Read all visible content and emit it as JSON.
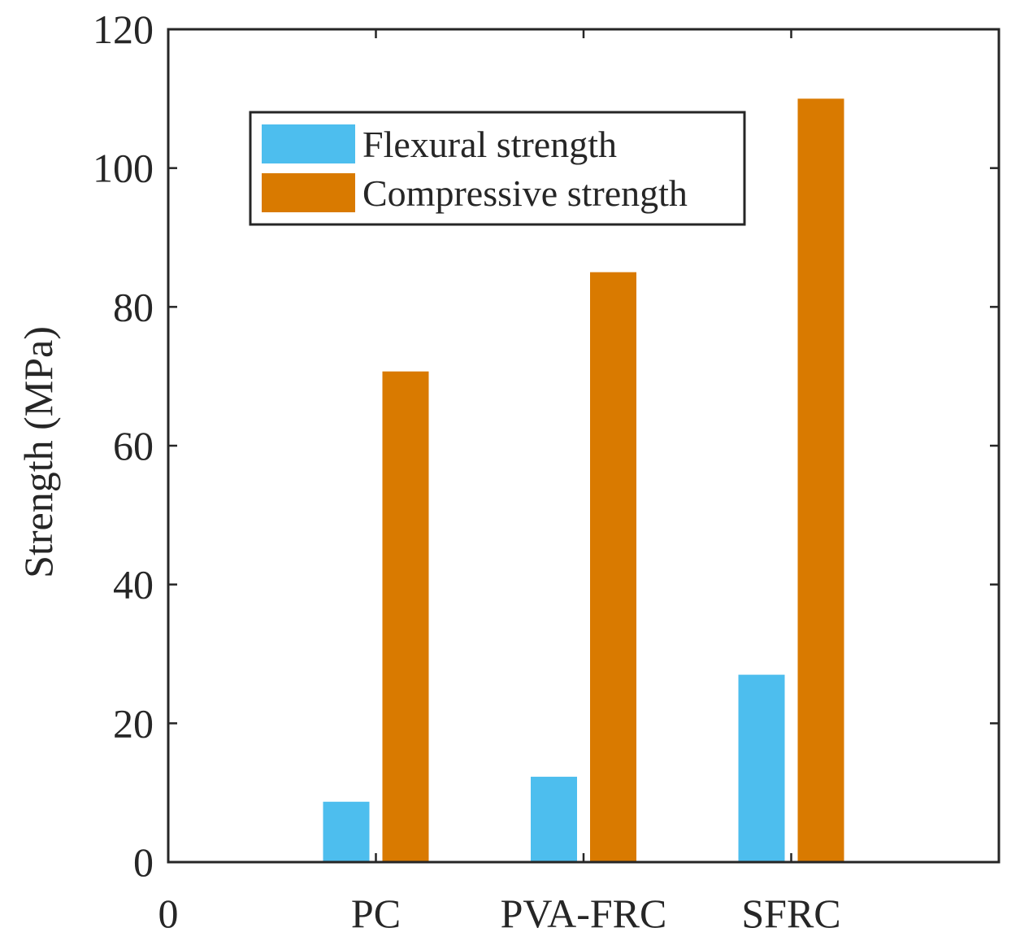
{
  "chart_data": {
    "type": "bar",
    "title": "",
    "xlabel": "",
    "ylabel": "Strength (MPa)",
    "ylim": [
      0,
      120
    ],
    "yticks": [
      0,
      20,
      40,
      60,
      80,
      100,
      120
    ],
    "xlim": [
      0,
      4
    ],
    "xtick_labels": [
      {
        "x": 0,
        "label": "0"
      },
      {
        "x": 1,
        "label": "PC"
      },
      {
        "x": 2,
        "label": "PVA-FRC"
      },
      {
        "x": 3,
        "label": "SFRC"
      }
    ],
    "categories": [
      "PC",
      "PVA-FRC",
      "SFRC"
    ],
    "category_positions": [
      1,
      2,
      3
    ],
    "series": [
      {
        "name": "Flexural strength",
        "color": "#4DBEEE",
        "values": [
          8.7,
          12.3,
          27.0
        ]
      },
      {
        "name": "Compressive strength",
        "color": "#D97A00",
        "values": [
          70.7,
          85.0,
          110.0
        ]
      }
    ],
    "legend_location": "top-left",
    "grid": false
  }
}
